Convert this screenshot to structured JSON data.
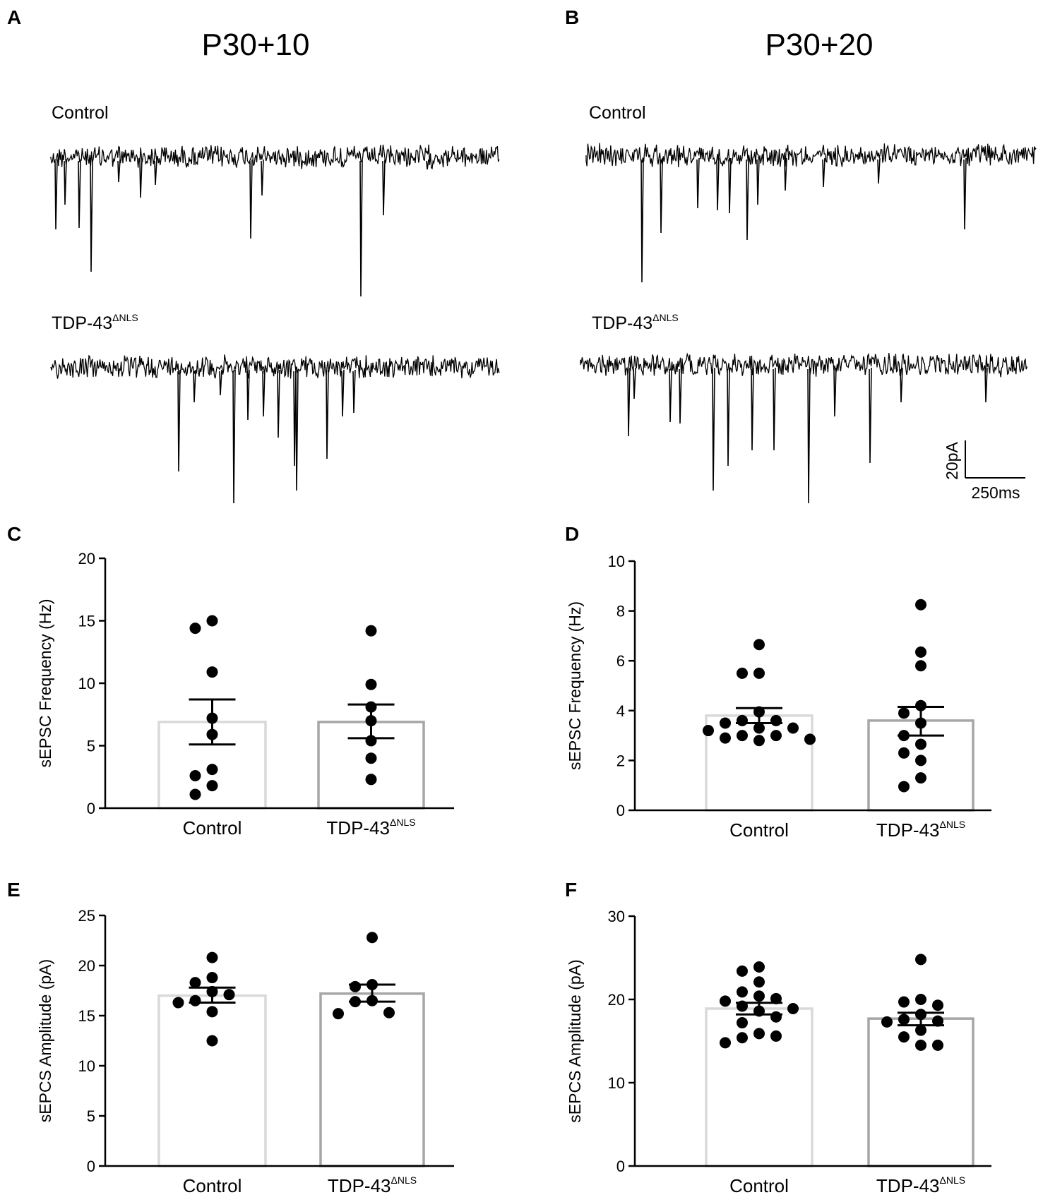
{
  "panels": {
    "A": {
      "letter": "A",
      "title": "P30+10",
      "trace1_label": "Control",
      "trace2_label_main": "TDP-43",
      "trace2_label_sup": "ΔNLS"
    },
    "B": {
      "letter": "B",
      "title": "P30+20",
      "trace1_label": "Control",
      "trace2_label_main": "TDP-43",
      "trace2_label_sup": "ΔNLS"
    }
  },
  "scale_bar": {
    "vertical_label": "20pA",
    "horizontal_label": "250ms"
  },
  "colors": {
    "control_bar": "#d9d9d9",
    "tdp_bar": "#a6a6a6",
    "points": "#000000",
    "trace": "#000000"
  },
  "chart_data": [
    {
      "id": "C",
      "letter": "C",
      "type": "bar",
      "ylabel": "sEPSC Frequency (Hz)",
      "ylim": [
        0,
        20
      ],
      "yticks": [
        0,
        5,
        10,
        15,
        20
      ],
      "categories": [
        {
          "main": "Control",
          "sup": ""
        },
        {
          "main": "TDP-43",
          "sup": "ΔNLS"
        }
      ],
      "series": [
        {
          "mean": 6.9,
          "sem_low": 5.1,
          "sem_high": 8.7,
          "points": [
            15.0,
            14.4,
            10.9,
            7.2,
            5.9,
            3.1,
            2.6,
            1.8,
            1.1
          ]
        },
        {
          "mean": 6.9,
          "sem_low": 5.6,
          "sem_high": 8.3,
          "points": [
            14.2,
            9.9,
            8.1,
            7.0,
            5.4,
            4.0,
            2.3
          ]
        }
      ]
    },
    {
      "id": "D",
      "letter": "D",
      "type": "bar",
      "ylabel": "sEPSC Frequency (Hz)",
      "ylim": [
        0,
        10
      ],
      "yticks": [
        0,
        2,
        4,
        6,
        8,
        10
      ],
      "categories": [
        {
          "main": "Control",
          "sup": ""
        },
        {
          "main": "TDP-43",
          "sup": "ΔNLS"
        }
      ],
      "series": [
        {
          "mean": 3.8,
          "sem_low": 3.5,
          "sem_high": 4.1,
          "points": [
            6.65,
            5.5,
            5.5,
            3.95,
            3.6,
            3.6,
            3.5,
            3.3,
            3.3,
            3.2,
            3.0,
            3.0,
            2.9,
            2.85,
            2.8
          ]
        },
        {
          "mean": 3.6,
          "sem_low": 3.0,
          "sem_high": 4.15,
          "points": [
            8.25,
            6.35,
            5.8,
            4.2,
            3.9,
            3.5,
            3.0,
            2.65,
            2.3,
            2.0,
            1.3,
            0.95
          ]
        }
      ]
    },
    {
      "id": "E",
      "letter": "E",
      "type": "bar",
      "ylabel": "sEPCS Amplitude (pA)",
      "ylim": [
        0,
        25
      ],
      "yticks": [
        0,
        5,
        10,
        15,
        20,
        25
      ],
      "categories": [
        {
          "main": "Control",
          "sup": ""
        },
        {
          "main": "TDP-43",
          "sup": "ΔNLS"
        }
      ],
      "series": [
        {
          "mean": 17.0,
          "sem_low": 16.3,
          "sem_high": 17.8,
          "points": [
            20.8,
            18.8,
            18.3,
            17.4,
            17.1,
            16.5,
            16.3,
            15.4,
            12.5
          ]
        },
        {
          "mean": 17.2,
          "sem_low": 16.4,
          "sem_high": 18.1,
          "points": [
            22.8,
            18.1,
            17.9,
            16.5,
            16.4,
            15.3,
            15.2
          ]
        }
      ]
    },
    {
      "id": "F",
      "letter": "F",
      "type": "bar",
      "ylabel": "sEPCS Amplitude (pA)",
      "ylim": [
        0,
        30
      ],
      "yticks": [
        0,
        10,
        20,
        30
      ],
      "categories": [
        {
          "main": "Control",
          "sup": ""
        },
        {
          "main": "TDP-43",
          "sup": "ΔNLS"
        }
      ],
      "series": [
        {
          "mean": 18.9,
          "sem_low": 18.2,
          "sem_high": 19.6,
          "points": [
            23.9,
            23.4,
            22.1,
            20.9,
            20.4,
            20.1,
            19.8,
            19.2,
            18.9,
            18.6,
            17.9,
            17.2,
            15.9,
            15.6,
            15.4,
            14.8
          ]
        },
        {
          "mean": 17.7,
          "sem_low": 16.9,
          "sem_high": 18.4,
          "points": [
            24.8,
            20.0,
            19.7,
            19.3,
            18.2,
            17.6,
            17.4,
            17.3,
            16.3,
            15.5,
            14.5,
            14.5
          ]
        }
      ]
    }
  ]
}
